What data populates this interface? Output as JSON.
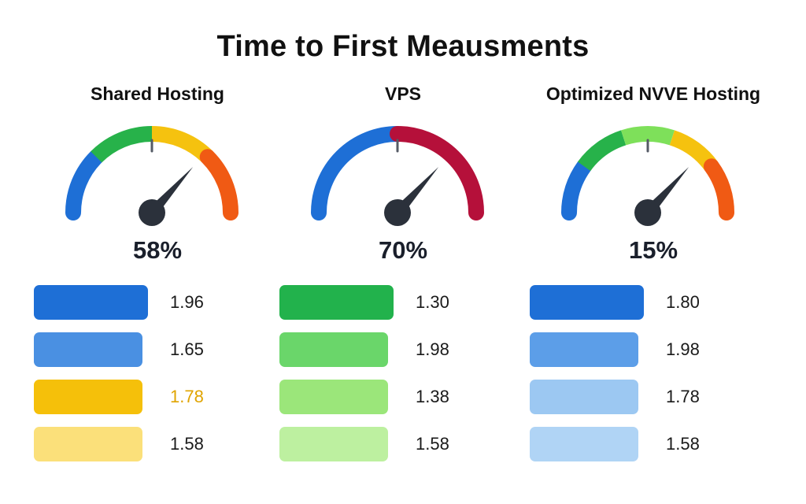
{
  "title": "Time to First Meausments",
  "chart_data": {
    "type": "gauge",
    "panels": [
      {
        "name": "Shared Hosting",
        "gauge_percent": 58,
        "gauge_label": "58%",
        "gauge_segments": [
          "#1e6fd6",
          "#27b24a",
          "#f5c20f",
          "#f05a14"
        ],
        "bars": [
          {
            "value": 1.96,
            "label": "1.96",
            "color": "#1e6fd6",
            "label_color": "#1a1a1a"
          },
          {
            "value": 1.65,
            "label": "1.65",
            "color": "#4a90e2",
            "label_color": "#1a1a1a"
          },
          {
            "value": 1.78,
            "label": "1.78",
            "color": "#f5c00a",
            "label_color": "#e0a400"
          },
          {
            "value": 1.58,
            "label": "1.58",
            "color": "#fbe07a",
            "label_color": "#1a1a1a"
          }
        ]
      },
      {
        "name": "VPS",
        "gauge_percent": 70,
        "gauge_label": "70%",
        "gauge_segments": [
          "#1e6fd6",
          "#b5103a"
        ],
        "bars": [
          {
            "value": 1.3,
            "label": "1.30",
            "color": "#22b24c",
            "label_color": "#1a1a1a"
          },
          {
            "value": 1.98,
            "label": "1.98",
            "color": "#6ad66a",
            "label_color": "#1a1a1a"
          },
          {
            "value": 1.38,
            "label": "1.38",
            "color": "#9be67a",
            "label_color": "#1a1a1a"
          },
          {
            "value": 1.58,
            "label": "1.58",
            "color": "#bdf0a0",
            "label_color": "#1a1a1a"
          }
        ]
      },
      {
        "name": "Optimized NVVE Hosting",
        "gauge_percent": 15,
        "gauge_label": "15%",
        "gauge_segments": [
          "#1e6fd6",
          "#27b24a",
          "#7ee05a",
          "#f5c20f",
          "#f05a14"
        ],
        "bars": [
          {
            "value": 1.8,
            "label": "1.80",
            "color": "#1e6fd6",
            "label_color": "#1a1a1a"
          },
          {
            "value": 1.98,
            "label": "1.98",
            "color": "#5c9ee8",
            "label_color": "#1a1a1a"
          },
          {
            "value": 1.78,
            "label": "1.78",
            "color": "#9cc8f2",
            "label_color": "#1a1a1a"
          },
          {
            "value": 1.58,
            "label": "1.58",
            "color": "#b0d4f5",
            "label_color": "#1a1a1a"
          }
        ]
      }
    ]
  }
}
